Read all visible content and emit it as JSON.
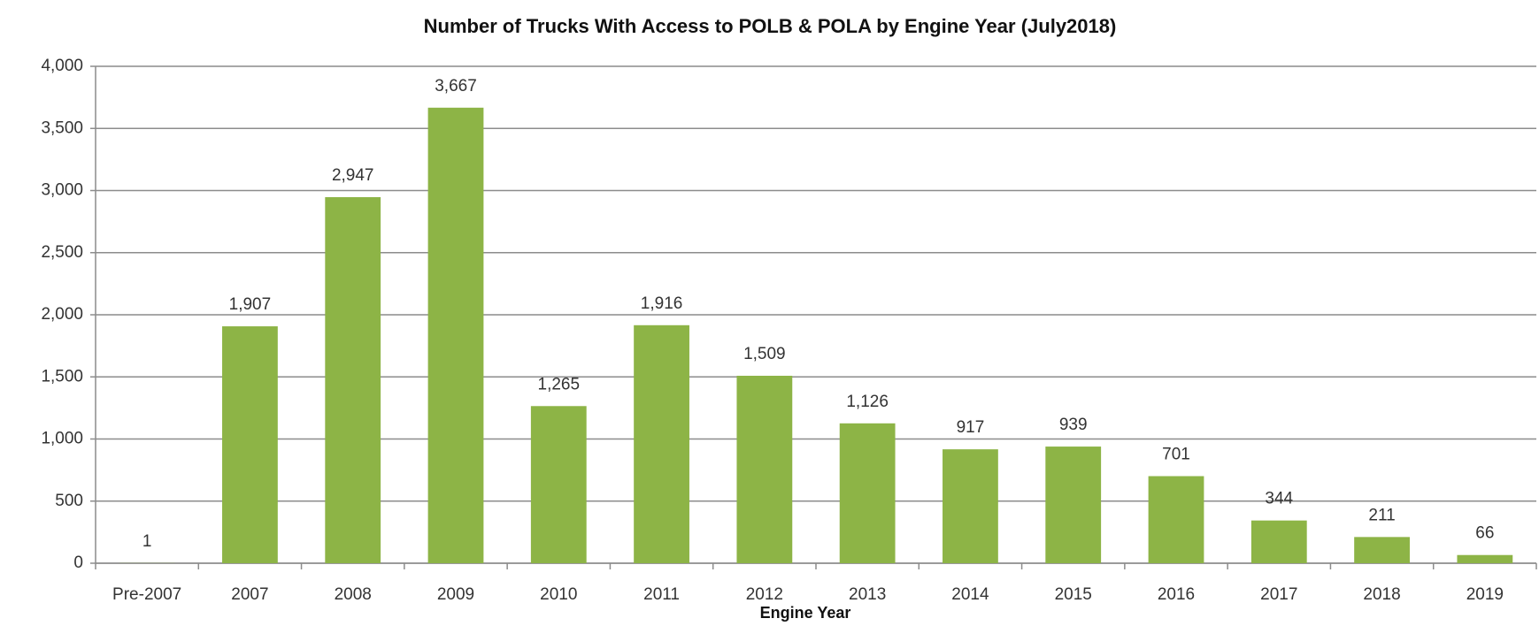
{
  "chart_data": {
    "type": "bar",
    "title": "Number of Trucks With Access to POLB & POLA by Engine Year (July2018)",
    "x_label": "Engine Year",
    "categories": [
      "Pre-2007",
      "2007",
      "2008",
      "2009",
      "2010",
      "2011",
      "2012",
      "2013",
      "2014",
      "2015",
      "2016",
      "2017",
      "2018",
      "2019"
    ],
    "values": [
      1,
      1907,
      2947,
      3667,
      1265,
      1916,
      1509,
      1126,
      917,
      939,
      701,
      344,
      211,
      66
    ],
    "value_labels": [
      "1",
      "1,907",
      "2,947",
      "3,667",
      "1,265",
      "1,916",
      "1,509",
      "1,126",
      "917",
      "939",
      "701",
      "344",
      "211",
      "66"
    ],
    "color": "#8db446",
    "ylim": [
      0,
      4000
    ],
    "yticks": [
      0,
      500,
      {
        "value": 1000,
        "label": "1,000"
      },
      {
        "value": 1500,
        "label": "1,500"
      },
      {
        "value": 2000,
        "label": "2,000"
      },
      {
        "value": 2500,
        "label": "2,500"
      },
      {
        "value": 3000,
        "label": "3,000"
      },
      {
        "value": 3500,
        "label": "3,500"
      },
      {
        "value": 4000,
        "label": "4,000"
      }
    ],
    "grid": true
  }
}
